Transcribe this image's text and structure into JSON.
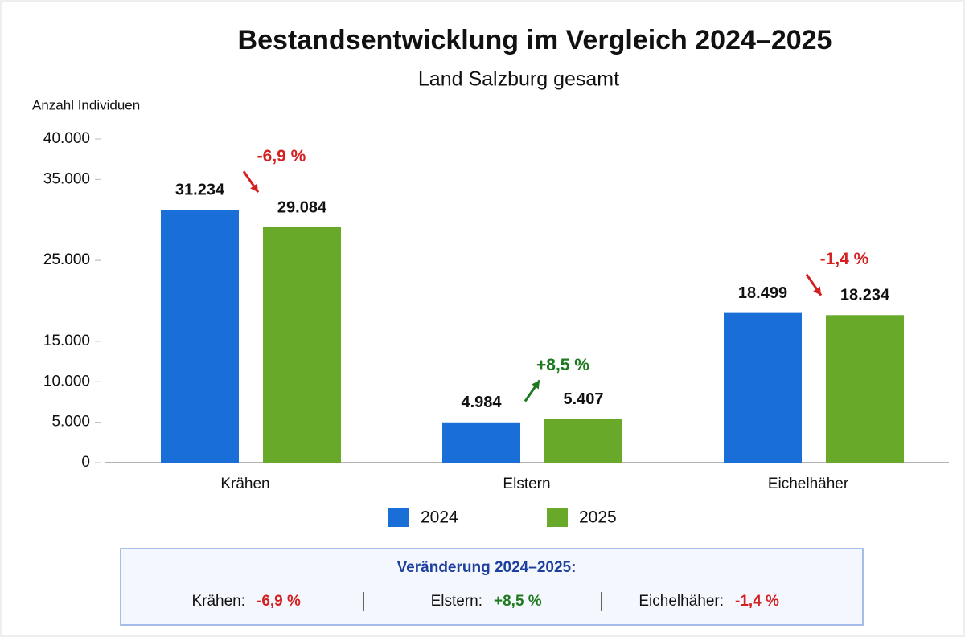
{
  "chart_data": {
    "type": "bar",
    "title": "Bestandsentwicklung im Vergleich 2024–2025",
    "subtitle": "Land Salzburg gesamt",
    "y_label": "Anzahl Individuen",
    "categories": [
      "Krähen",
      "Elstern",
      "Eichelhäher"
    ],
    "series": [
      {
        "name": "2024",
        "color": "#1a6ed8",
        "values": [
          31234,
          4984,
          18499
        ],
        "value_labels": [
          "31.234",
          "4.984",
          "18.499"
        ]
      },
      {
        "name": "2025",
        "color": "#68a92a",
        "values": [
          29084,
          5407,
          18234
        ],
        "value_labels": [
          "29.084",
          "5.407",
          "18.234"
        ]
      }
    ],
    "annotations": [
      "-6,9 %",
      "+8,5 %",
      "-1,4 %"
    ],
    "ylim": [
      0,
      40000
    ],
    "yticks": [
      {
        "value": 40000,
        "label": "40.000"
      },
      {
        "value": 35000,
        "label": "35.000"
      },
      {
        "value": 25000,
        "label": "25.000"
      },
      {
        "value": 25000,
        "label": "25.000"
      },
      {
        "value": 15000,
        "label": "15.000"
      },
      {
        "value": 10000,
        "label": "10.000"
      },
      {
        "value": 5000,
        "label": "5.000"
      },
      0
    ],
    "grid": false,
    "legend": "bottom"
  },
  "summary": {
    "title": "Veränderung 2024–2025:",
    "items": [
      {
        "label": "Krähen:",
        "value": "-6,9 %"
      },
      {
        "label": "Elstern:",
        "value": "+8,5 %"
      },
      {
        "label": "Eichelhäher:",
        "value": "-1,4 %"
      }
    ]
  }
}
